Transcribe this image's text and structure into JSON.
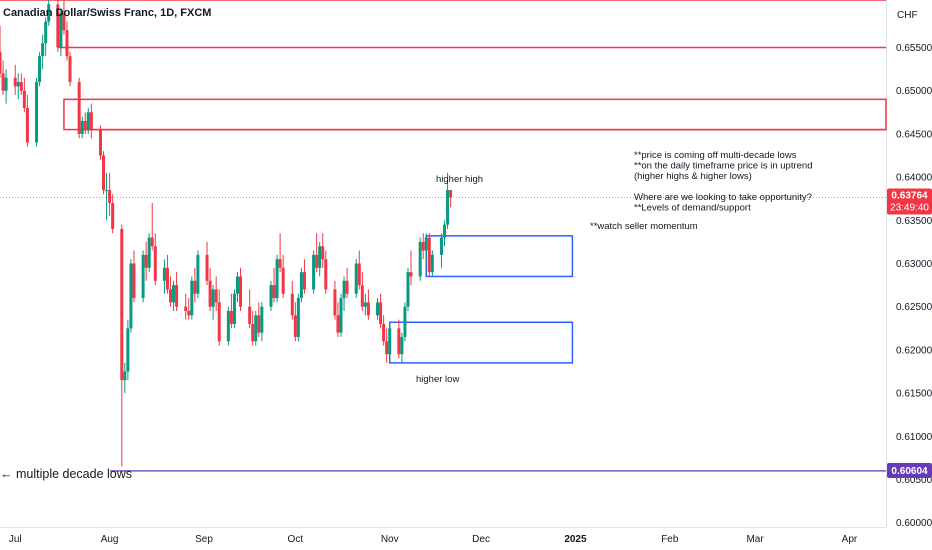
{
  "header": {
    "symbol_title": "Canadian Dollar/Swiss Franc, 1D, FXCM"
  },
  "price_axis": {
    "currency": "CHF",
    "ticks": [
      "0.65500",
      "0.65000",
      "0.64500",
      "0.64000",
      "0.63500",
      "0.63000",
      "0.62500",
      "0.62000",
      "0.61500",
      "0.61000",
      "0.60500",
      "0.60000"
    ],
    "tick_values": [
      0.655,
      0.65,
      0.645,
      0.64,
      0.635,
      0.63,
      0.625,
      0.62,
      0.615,
      0.61,
      0.605,
      0.6
    ],
    "current_price": "0.63764",
    "countdown": "23:49:40",
    "low_badge": "0.60604"
  },
  "time_axis": {
    "labels": [
      "Jul",
      "Aug",
      "Sep",
      "Oct",
      "Nov",
      "Dec",
      "2025",
      "Feb",
      "Mar",
      "Apr"
    ]
  },
  "annotations": {
    "higher_high": "higher high",
    "higher_low": "higher low",
    "decade_lows": "← multiple decade lows",
    "watch": "**watch seller momentum",
    "note_lines": [
      "**price is coming off multi-decade lows",
      "**on the daily timeframe price is in uptrend",
      "(higher highs & higher lows)",
      "",
      "Where are we looking to take opportunity?",
      "**Levels of demand/support"
    ]
  },
  "colors": {
    "up": "#089981",
    "down": "#f23645",
    "resistance": "#f23645",
    "demand": "#2962ff",
    "low_line": "#7e57c2",
    "current_badge": "#f23645",
    "low_badge": "#673ab7"
  },
  "chart_data": {
    "type": "candlestick",
    "title": "Canadian Dollar/Swiss Franc, 1D, FXCM",
    "ylim": [
      0.5995,
      0.6605
    ],
    "x_range": [
      "2024-06-26",
      "2025-04-13"
    ],
    "candles": [
      {
        "date": "2024-06-26",
        "open": 0.6545,
        "high": 0.6575,
        "low": 0.6515,
        "close": 0.652
      },
      {
        "date": "2024-06-27",
        "open": 0.652,
        "high": 0.6535,
        "low": 0.6495,
        "close": 0.65
      },
      {
        "date": "2024-06-28",
        "open": 0.65,
        "high": 0.6525,
        "low": 0.6485,
        "close": 0.6515
      },
      {
        "date": "2024-07-01",
        "open": 0.6515,
        "high": 0.653,
        "low": 0.6495,
        "close": 0.6505
      },
      {
        "date": "2024-07-02",
        "open": 0.6505,
        "high": 0.652,
        "low": 0.649,
        "close": 0.651
      },
      {
        "date": "2024-07-03",
        "open": 0.651,
        "high": 0.652,
        "low": 0.6495,
        "close": 0.65
      },
      {
        "date": "2024-07-04",
        "open": 0.65,
        "high": 0.6515,
        "low": 0.6475,
        "close": 0.648
      },
      {
        "date": "2024-07-05",
        "open": 0.648,
        "high": 0.6495,
        "low": 0.6435,
        "close": 0.644
      },
      {
        "date": "2024-07-08",
        "open": 0.644,
        "high": 0.6515,
        "low": 0.6435,
        "close": 0.651
      },
      {
        "date": "2024-07-09",
        "open": 0.651,
        "high": 0.6545,
        "low": 0.6505,
        "close": 0.654
      },
      {
        "date": "2024-07-10",
        "open": 0.654,
        "high": 0.6565,
        "low": 0.6525,
        "close": 0.6555
      },
      {
        "date": "2024-07-11",
        "open": 0.6555,
        "high": 0.6585,
        "low": 0.654,
        "close": 0.658
      },
      {
        "date": "2024-07-12",
        "open": 0.658,
        "high": 0.6605,
        "low": 0.6575,
        "close": 0.66
      },
      {
        "date": "2024-07-15",
        "open": 0.66,
        "high": 0.6605,
        "low": 0.6545,
        "close": 0.655
      },
      {
        "date": "2024-07-16",
        "open": 0.655,
        "high": 0.6595,
        "low": 0.654,
        "close": 0.659
      },
      {
        "date": "2024-07-17",
        "open": 0.659,
        "high": 0.6605,
        "low": 0.6565,
        "close": 0.657
      },
      {
        "date": "2024-07-18",
        "open": 0.657,
        "high": 0.658,
        "low": 0.6535,
        "close": 0.654
      },
      {
        "date": "2024-07-19",
        "open": 0.654,
        "high": 0.6545,
        "low": 0.6505,
        "close": 0.651
      },
      {
        "date": "2024-07-22",
        "open": 0.651,
        "high": 0.6515,
        "low": 0.6445,
        "close": 0.645
      },
      {
        "date": "2024-07-23",
        "open": 0.645,
        "high": 0.647,
        "low": 0.6445,
        "close": 0.6465
      },
      {
        "date": "2024-07-24",
        "open": 0.6465,
        "high": 0.6475,
        "low": 0.645,
        "close": 0.6455
      },
      {
        "date": "2024-07-25",
        "open": 0.6455,
        "high": 0.648,
        "low": 0.645,
        "close": 0.6475
      },
      {
        "date": "2024-07-26",
        "open": 0.6475,
        "high": 0.6485,
        "low": 0.6445,
        "close": 0.6455
      },
      {
        "date": "2024-07-29",
        "open": 0.6455,
        "high": 0.646,
        "low": 0.642,
        "close": 0.6425
      },
      {
        "date": "2024-07-30",
        "open": 0.6425,
        "high": 0.643,
        "low": 0.638,
        "close": 0.6385
      },
      {
        "date": "2024-07-31",
        "open": 0.6385,
        "high": 0.6405,
        "low": 0.635,
        "close": 0.6385
      },
      {
        "date": "2024-08-01",
        "open": 0.6385,
        "high": 0.6405,
        "low": 0.6355,
        "close": 0.637
      },
      {
        "date": "2024-08-02",
        "open": 0.637,
        "high": 0.638,
        "low": 0.6335,
        "close": 0.634
      },
      {
        "date": "2024-08-05",
        "open": 0.634,
        "high": 0.6345,
        "low": 0.6065,
        "close": 0.6165
      },
      {
        "date": "2024-08-06",
        "open": 0.6165,
        "high": 0.6185,
        "low": 0.615,
        "close": 0.6175
      },
      {
        "date": "2024-08-07",
        "open": 0.6175,
        "high": 0.6235,
        "low": 0.6165,
        "close": 0.6225
      },
      {
        "date": "2024-08-08",
        "open": 0.6225,
        "high": 0.6305,
        "low": 0.622,
        "close": 0.63
      },
      {
        "date": "2024-08-09",
        "open": 0.63,
        "high": 0.6315,
        "low": 0.6255,
        "close": 0.626
      },
      {
        "date": "2024-08-12",
        "open": 0.626,
        "high": 0.6315,
        "low": 0.6255,
        "close": 0.631
      },
      {
        "date": "2024-08-13",
        "open": 0.631,
        "high": 0.6325,
        "low": 0.628,
        "close": 0.6295
      },
      {
        "date": "2024-08-14",
        "open": 0.6295,
        "high": 0.6335,
        "low": 0.629,
        "close": 0.633
      },
      {
        "date": "2024-08-15",
        "open": 0.633,
        "high": 0.637,
        "low": 0.6315,
        "close": 0.632
      },
      {
        "date": "2024-08-16",
        "open": 0.632,
        "high": 0.6335,
        "low": 0.6275,
        "close": 0.628
      },
      {
        "date": "2024-08-19",
        "open": 0.628,
        "high": 0.6305,
        "low": 0.6265,
        "close": 0.6295
      },
      {
        "date": "2024-08-20",
        "open": 0.6295,
        "high": 0.631,
        "low": 0.6265,
        "close": 0.627
      },
      {
        "date": "2024-08-21",
        "open": 0.627,
        "high": 0.6285,
        "low": 0.625,
        "close": 0.6255
      },
      {
        "date": "2024-08-22",
        "open": 0.6255,
        "high": 0.628,
        "low": 0.6245,
        "close": 0.6275
      },
      {
        "date": "2024-08-23",
        "open": 0.6275,
        "high": 0.629,
        "low": 0.6245,
        "close": 0.625
      },
      {
        "date": "2024-08-26",
        "open": 0.625,
        "high": 0.6265,
        "low": 0.6235,
        "close": 0.6245
      },
      {
        "date": "2024-08-27",
        "open": 0.6245,
        "high": 0.626,
        "low": 0.6235,
        "close": 0.624
      },
      {
        "date": "2024-08-28",
        "open": 0.624,
        "high": 0.6285,
        "low": 0.6235,
        "close": 0.628
      },
      {
        "date": "2024-08-29",
        "open": 0.628,
        "high": 0.6295,
        "low": 0.6255,
        "close": 0.6265
      },
      {
        "date": "2024-08-30",
        "open": 0.6265,
        "high": 0.6315,
        "low": 0.626,
        "close": 0.631
      },
      {
        "date": "2024-09-02",
        "open": 0.631,
        "high": 0.6325,
        "low": 0.6275,
        "close": 0.628
      },
      {
        "date": "2024-09-03",
        "open": 0.628,
        "high": 0.6295,
        "low": 0.6245,
        "close": 0.625
      },
      {
        "date": "2024-09-04",
        "open": 0.625,
        "high": 0.6275,
        "low": 0.6235,
        "close": 0.627
      },
      {
        "date": "2024-09-05",
        "open": 0.627,
        "high": 0.6285,
        "low": 0.6245,
        "close": 0.6255
      },
      {
        "date": "2024-09-06",
        "open": 0.6255,
        "high": 0.627,
        "low": 0.6205,
        "close": 0.621
      },
      {
        "date": "2024-09-09",
        "open": 0.621,
        "high": 0.625,
        "low": 0.6205,
        "close": 0.6245
      },
      {
        "date": "2024-09-10",
        "open": 0.6245,
        "high": 0.6265,
        "low": 0.6225,
        "close": 0.623
      },
      {
        "date": "2024-09-11",
        "open": 0.623,
        "high": 0.627,
        "low": 0.6225,
        "close": 0.6265
      },
      {
        "date": "2024-09-12",
        "open": 0.6265,
        "high": 0.629,
        "low": 0.6255,
        "close": 0.6285
      },
      {
        "date": "2024-09-13",
        "open": 0.6285,
        "high": 0.6295,
        "low": 0.6245,
        "close": 0.625
      },
      {
        "date": "2024-09-16",
        "open": 0.625,
        "high": 0.627,
        "low": 0.6225,
        "close": 0.623
      },
      {
        "date": "2024-09-17",
        "open": 0.623,
        "high": 0.6245,
        "low": 0.6205,
        "close": 0.621
      },
      {
        "date": "2024-09-18",
        "open": 0.621,
        "high": 0.6245,
        "low": 0.6205,
        "close": 0.624
      },
      {
        "date": "2024-09-19",
        "open": 0.624,
        "high": 0.6255,
        "low": 0.6215,
        "close": 0.622
      },
      {
        "date": "2024-09-20",
        "open": 0.622,
        "high": 0.6255,
        "low": 0.621,
        "close": 0.625
      },
      {
        "date": "2024-09-23",
        "open": 0.625,
        "high": 0.628,
        "low": 0.6245,
        "close": 0.6275
      },
      {
        "date": "2024-09-24",
        "open": 0.6275,
        "high": 0.6295,
        "low": 0.6255,
        "close": 0.626
      },
      {
        "date": "2024-09-25",
        "open": 0.626,
        "high": 0.631,
        "low": 0.6255,
        "close": 0.6305
      },
      {
        "date": "2024-09-26",
        "open": 0.6305,
        "high": 0.6335,
        "low": 0.629,
        "close": 0.6295
      },
      {
        "date": "2024-09-27",
        "open": 0.6295,
        "high": 0.631,
        "low": 0.626,
        "close": 0.6265
      },
      {
        "date": "2024-09-30",
        "open": 0.6265,
        "high": 0.628,
        "low": 0.6235,
        "close": 0.624
      },
      {
        "date": "2024-10-01",
        "open": 0.624,
        "high": 0.6255,
        "low": 0.621,
        "close": 0.6215
      },
      {
        "date": "2024-10-02",
        "open": 0.6215,
        "high": 0.6265,
        "low": 0.621,
        "close": 0.626
      },
      {
        "date": "2024-10-03",
        "open": 0.626,
        "high": 0.6295,
        "low": 0.6255,
        "close": 0.629
      },
      {
        "date": "2024-10-04",
        "open": 0.629,
        "high": 0.6305,
        "low": 0.6265,
        "close": 0.627
      },
      {
        "date": "2024-10-07",
        "open": 0.627,
        "high": 0.6315,
        "low": 0.6265,
        "close": 0.631
      },
      {
        "date": "2024-10-08",
        "open": 0.631,
        "high": 0.6335,
        "low": 0.629,
        "close": 0.6295
      },
      {
        "date": "2024-10-09",
        "open": 0.6295,
        "high": 0.6325,
        "low": 0.6285,
        "close": 0.632
      },
      {
        "date": "2024-10-10",
        "open": 0.632,
        "high": 0.6335,
        "low": 0.6295,
        "close": 0.6305
      },
      {
        "date": "2024-10-11",
        "open": 0.6305,
        "high": 0.6315,
        "low": 0.6265,
        "close": 0.627
      },
      {
        "date": "2024-10-14",
        "open": 0.627,
        "high": 0.628,
        "low": 0.6235,
        "close": 0.624
      },
      {
        "date": "2024-10-15",
        "open": 0.624,
        "high": 0.6255,
        "low": 0.6215,
        "close": 0.622
      },
      {
        "date": "2024-10-16",
        "open": 0.622,
        "high": 0.6265,
        "low": 0.6215,
        "close": 0.626
      },
      {
        "date": "2024-10-17",
        "open": 0.626,
        "high": 0.6285,
        "low": 0.6245,
        "close": 0.628
      },
      {
        "date": "2024-10-18",
        "open": 0.628,
        "high": 0.6295,
        "low": 0.626,
        "close": 0.6265
      },
      {
        "date": "2024-10-21",
        "open": 0.6265,
        "high": 0.6305,
        "low": 0.626,
        "close": 0.63
      },
      {
        "date": "2024-10-22",
        "open": 0.63,
        "high": 0.6315,
        "low": 0.627,
        "close": 0.6275
      },
      {
        "date": "2024-10-23",
        "open": 0.6275,
        "high": 0.629,
        "low": 0.6245,
        "close": 0.625
      },
      {
        "date": "2024-10-24",
        "open": 0.625,
        "high": 0.6265,
        "low": 0.624,
        "close": 0.6255
      },
      {
        "date": "2024-10-25",
        "open": 0.6255,
        "high": 0.627,
        "low": 0.6235,
        "close": 0.624
      },
      {
        "date": "2024-10-28",
        "open": 0.624,
        "high": 0.626,
        "low": 0.6235,
        "close": 0.6255
      },
      {
        "date": "2024-10-29",
        "open": 0.6255,
        "high": 0.6265,
        "low": 0.6225,
        "close": 0.623
      },
      {
        "date": "2024-10-30",
        "open": 0.623,
        "high": 0.624,
        "low": 0.6205,
        "close": 0.621
      },
      {
        "date": "2024-10-31",
        "open": 0.621,
        "high": 0.6225,
        "low": 0.6185,
        "close": 0.6195
      },
      {
        "date": "2024-11-01",
        "open": 0.6195,
        "high": 0.623,
        "low": 0.619,
        "close": 0.6225
      },
      {
        "date": "2024-11-04",
        "open": 0.6225,
        "high": 0.6235,
        "low": 0.619,
        "close": 0.6195
      },
      {
        "date": "2024-11-05",
        "open": 0.6195,
        "high": 0.622,
        "low": 0.6185,
        "close": 0.6215
      },
      {
        "date": "2024-11-06",
        "open": 0.6215,
        "high": 0.6255,
        "low": 0.621,
        "close": 0.625
      },
      {
        "date": "2024-11-07",
        "open": 0.625,
        "high": 0.6295,
        "low": 0.6245,
        "close": 0.629
      },
      {
        "date": "2024-11-08",
        "open": 0.629,
        "high": 0.6315,
        "low": 0.6275,
        "close": 0.6285
      },
      {
        "date": "2024-11-11",
        "open": 0.6285,
        "high": 0.633,
        "low": 0.628,
        "close": 0.6325
      },
      {
        "date": "2024-11-12",
        "open": 0.6325,
        "high": 0.6335,
        "low": 0.6305,
        "close": 0.6315
      },
      {
        "date": "2024-11-13",
        "open": 0.6315,
        "high": 0.6335,
        "low": 0.63,
        "close": 0.633
      },
      {
        "date": "2024-11-14",
        "open": 0.633,
        "high": 0.6335,
        "low": 0.6285,
        "close": 0.629
      },
      {
        "date": "2024-11-15",
        "open": 0.629,
        "high": 0.6315,
        "low": 0.6285,
        "close": 0.631
      },
      {
        "date": "2024-11-18",
        "open": 0.631,
        "high": 0.6335,
        "low": 0.6295,
        "close": 0.633
      },
      {
        "date": "2024-11-19",
        "open": 0.633,
        "high": 0.635,
        "low": 0.632,
        "close": 0.6345
      },
      {
        "date": "2024-11-20",
        "open": 0.6345,
        "high": 0.6405,
        "low": 0.634,
        "close": 0.6385
      },
      {
        "date": "2024-11-21",
        "open": 0.6385,
        "high": 0.6385,
        "low": 0.6365,
        "close": 0.63764
      }
    ],
    "annotations": [
      "higher high",
      "higher low",
      "← multiple decade lows",
      "**watch seller momentum"
    ],
    "horizontal_lines": [
      0.6605,
      0.655,
      0.6455,
      0.606
    ],
    "supply_zone": {
      "from": "2024-07-17",
      "to": "2024-07-24",
      "top": 0.649,
      "bottom": 0.6455
    },
    "demand_zones": [
      {
        "from": "2024-11-13",
        "to": "2024-12-31",
        "top": 0.6332,
        "bottom": 0.6285
      },
      {
        "from": "2024-11-01",
        "to": "2024-12-31",
        "top": 0.6232,
        "bottom": 0.6185
      }
    ]
  }
}
